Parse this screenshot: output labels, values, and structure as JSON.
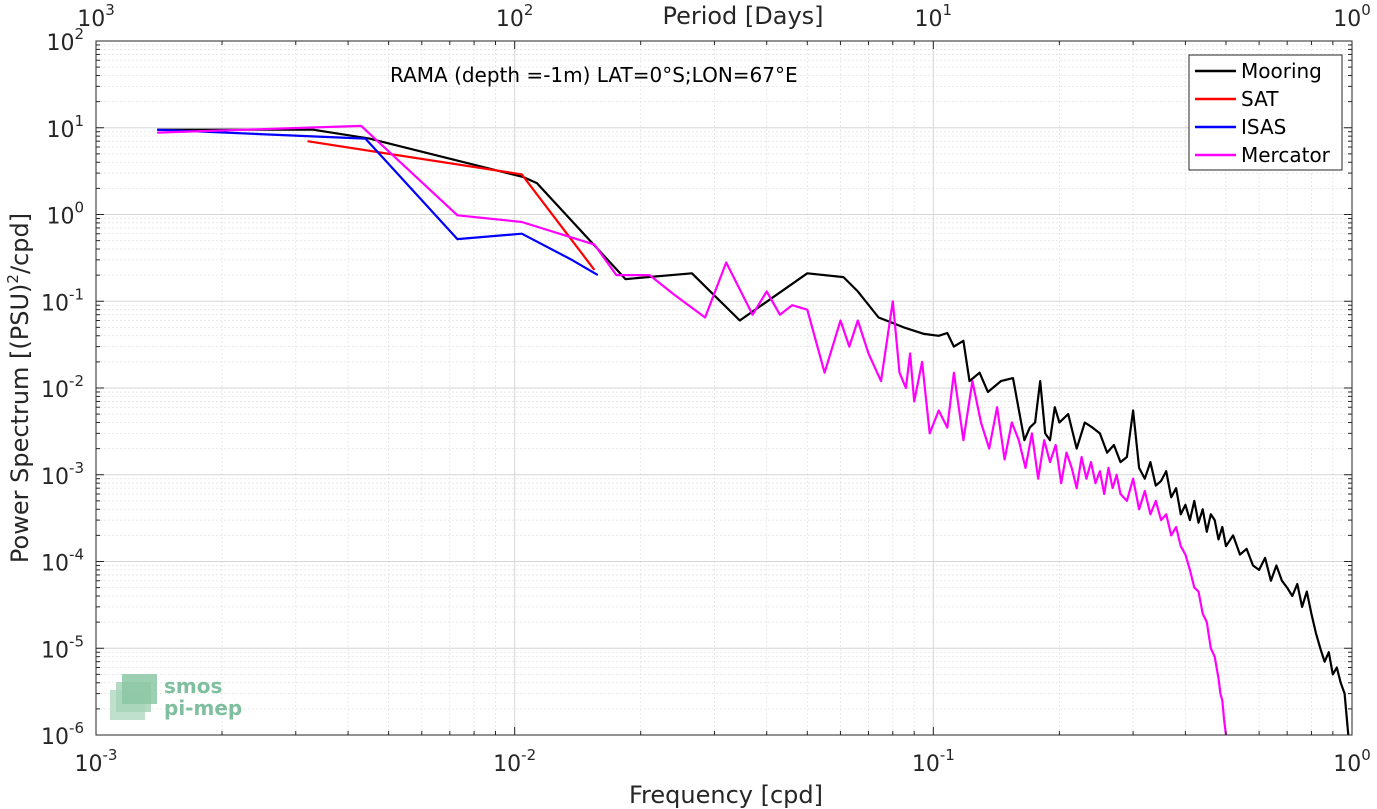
{
  "chart_data": {
    "type": "line",
    "annotation": "RAMA (depth =-1m) LAT=0°S;LON=67°E",
    "xlabel": "Frequency [cpd]",
    "ylabel_main": "Power Spectrum [(PSU)",
    "ylabel_sup": "2",
    "ylabel_tail": "/cpd]",
    "top_axis_label": "Period [Days]",
    "x_scale": "log",
    "y_scale": "log",
    "xlim": [
      0.001,
      1
    ],
    "ylim": [
      1e-06,
      100
    ],
    "grid": true,
    "legend_position": "top-right",
    "x_ticks": [
      {
        "base": "10",
        "exp": "-3"
      },
      {
        "base": "10",
        "exp": "-2"
      },
      {
        "base": "10",
        "exp": "-1"
      },
      {
        "base": "10",
        "exp": "0"
      }
    ],
    "top_ticks": [
      {
        "base": "10",
        "exp": "3"
      },
      {
        "base": "10",
        "exp": "2"
      },
      {
        "base": "10",
        "exp": "1"
      },
      {
        "base": "10",
        "exp": "0"
      }
    ],
    "y_ticks": [
      {
        "base": "10",
        "exp": "2"
      },
      {
        "base": "10",
        "exp": "1"
      },
      {
        "base": "10",
        "exp": "0"
      },
      {
        "base": "10",
        "exp": "-1"
      },
      {
        "base": "10",
        "exp": "-2"
      },
      {
        "base": "10",
        "exp": "-3"
      },
      {
        "base": "10",
        "exp": "-4"
      },
      {
        "base": "10",
        "exp": "-5"
      },
      {
        "base": "10",
        "exp": "-6"
      }
    ],
    "series": [
      {
        "name": "Mooring",
        "color": "#000000",
        "x": [
          0.0014,
          0.0033,
          0.0045,
          0.0105,
          0.0113,
          0.0184,
          0.0265,
          0.0345,
          0.05,
          0.061,
          0.066,
          0.074,
          0.085,
          0.095,
          0.103,
          0.108,
          0.112,
          0.118,
          0.122,
          0.129,
          0.135,
          0.145,
          0.155,
          0.165,
          0.17,
          0.175,
          0.18,
          0.185,
          0.19,
          0.195,
          0.2,
          0.21,
          0.22,
          0.23,
          0.24,
          0.25,
          0.26,
          0.27,
          0.28,
          0.29,
          0.3,
          0.31,
          0.32,
          0.33,
          0.34,
          0.35,
          0.36,
          0.37,
          0.38,
          0.39,
          0.4,
          0.41,
          0.42,
          0.43,
          0.44,
          0.45,
          0.46,
          0.47,
          0.48,
          0.49,
          0.5,
          0.52,
          0.54,
          0.56,
          0.58,
          0.6,
          0.62,
          0.64,
          0.66,
          0.68,
          0.7,
          0.72,
          0.74,
          0.76,
          0.78,
          0.8,
          0.82,
          0.84,
          0.86,
          0.88,
          0.9,
          0.92,
          0.94,
          0.96,
          0.98
        ],
        "values": [
          9.5,
          9.5,
          7.5,
          2.7,
          2.3,
          0.18,
          0.21,
          0.06,
          0.21,
          0.19,
          0.13,
          0.065,
          0.05,
          0.042,
          0.04,
          0.043,
          0.03,
          0.035,
          0.012,
          0.015,
          0.009,
          0.012,
          0.013,
          0.0025,
          0.0035,
          0.004,
          0.012,
          0.003,
          0.0025,
          0.006,
          0.004,
          0.005,
          0.002,
          0.004,
          0.0035,
          0.003,
          0.0018,
          0.0022,
          0.0014,
          0.0016,
          0.0055,
          0.0012,
          0.0009,
          0.0014,
          0.00075,
          0.00085,
          0.0011,
          0.00055,
          0.0007,
          0.00035,
          0.00045,
          0.0003,
          0.0005,
          0.00028,
          0.0004,
          0.00022,
          0.00035,
          0.0003,
          0.00018,
          0.00025,
          0.00015,
          0.0002,
          0.00012,
          0.00014,
          9e-05,
          8e-05,
          0.00011,
          6e-05,
          9e-05,
          6e-05,
          5e-05,
          4e-05,
          5.5e-05,
          3e-05,
          4.5e-05,
          2.5e-05,
          1.5e-05,
          1e-05,
          7e-06,
          9e-06,
          5e-06,
          6e-06,
          4e-06,
          3e-06,
          1e-06
        ]
      },
      {
        "name": "SAT",
        "color": "#ff0000",
        "x": [
          0.0032,
          0.0104,
          0.0155
        ],
        "values": [
          7.0,
          2.9,
          0.23
        ]
      },
      {
        "name": "ISAS",
        "color": "#0000ff",
        "x": [
          0.0014,
          0.0044,
          0.0073,
          0.0104,
          0.0137,
          0.0158
        ],
        "values": [
          9.5,
          7.5,
          0.52,
          0.6,
          0.3,
          0.2
        ]
      },
      {
        "name": "Mercator",
        "color": "#ff00ff",
        "x": [
          0.0014,
          0.0043,
          0.0073,
          0.0104,
          0.0155,
          0.0175,
          0.021,
          0.024,
          0.0285,
          0.032,
          0.037,
          0.04,
          0.043,
          0.046,
          0.05,
          0.055,
          0.06,
          0.063,
          0.066,
          0.07,
          0.075,
          0.08,
          0.083,
          0.086,
          0.088,
          0.09,
          0.094,
          0.098,
          0.103,
          0.108,
          0.112,
          0.118,
          0.124,
          0.13,
          0.136,
          0.142,
          0.148,
          0.154,
          0.16,
          0.166,
          0.172,
          0.178,
          0.184,
          0.19,
          0.196,
          0.202,
          0.208,
          0.214,
          0.22,
          0.226,
          0.232,
          0.238,
          0.244,
          0.25,
          0.256,
          0.262,
          0.268,
          0.274,
          0.28,
          0.29,
          0.3,
          0.31,
          0.32,
          0.33,
          0.34,
          0.35,
          0.36,
          0.37,
          0.38,
          0.39,
          0.4,
          0.41,
          0.42,
          0.43,
          0.44,
          0.45,
          0.46,
          0.47,
          0.48,
          0.485,
          0.49,
          0.495,
          0.5
        ],
        "values": [
          8.8,
          10.5,
          0.98,
          0.82,
          0.45,
          0.2,
          0.2,
          0.12,
          0.065,
          0.28,
          0.07,
          0.13,
          0.07,
          0.09,
          0.08,
          0.015,
          0.06,
          0.03,
          0.06,
          0.025,
          0.012,
          0.1,
          0.015,
          0.01,
          0.025,
          0.007,
          0.02,
          0.003,
          0.0055,
          0.0035,
          0.015,
          0.0025,
          0.012,
          0.004,
          0.002,
          0.006,
          0.0015,
          0.004,
          0.0025,
          0.0012,
          0.003,
          0.0009,
          0.0025,
          0.0014,
          0.0022,
          0.0008,
          0.0018,
          0.0012,
          0.0007,
          0.0016,
          0.0009,
          0.0014,
          0.0008,
          0.0011,
          0.0006,
          0.0012,
          0.0007,
          0.001,
          0.0006,
          0.0005,
          0.0009,
          0.0004,
          0.00065,
          0.00035,
          0.0005,
          0.0003,
          0.00035,
          0.0002,
          0.00025,
          0.00015,
          0.00012,
          8e-05,
          5e-05,
          4.5e-05,
          2.5e-05,
          2e-05,
          1e-05,
          8e-06,
          4.5e-06,
          3e-06,
          2.5e-06,
          1.5e-06,
          1e-06
        ]
      }
    ]
  },
  "watermark": {
    "line1": "smos",
    "line2": "pi-mep",
    "color": "#7fbf9f"
  }
}
